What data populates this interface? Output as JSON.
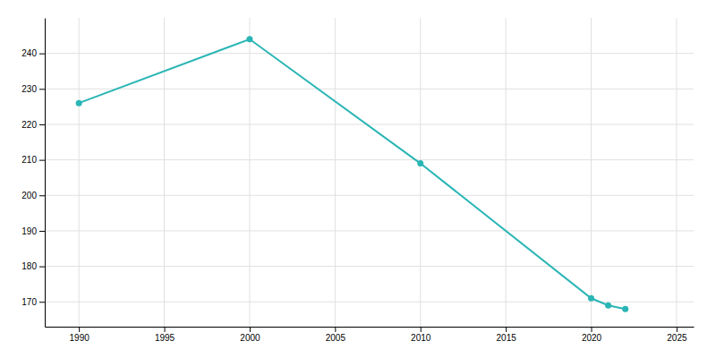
{
  "chart_data": {
    "type": "line",
    "x": [
      1990,
      2000,
      2010,
      2020,
      2021,
      2022
    ],
    "values": [
      226,
      244,
      209,
      171,
      169,
      168
    ],
    "color": "#2ab5b5",
    "marker": "circle",
    "xlim": [
      1988,
      2026
    ],
    "ylim": [
      163,
      250
    ],
    "xticks": [
      1990,
      1995,
      2000,
      2005,
      2010,
      2015,
      2020,
      2025
    ],
    "yticks": [
      170,
      180,
      190,
      200,
      210,
      220,
      230,
      240
    ],
    "grid": true
  }
}
